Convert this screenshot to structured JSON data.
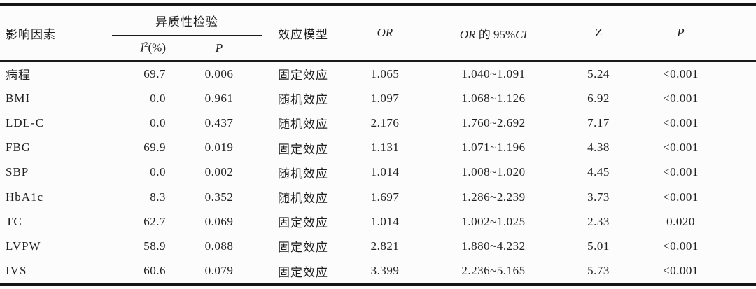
{
  "page": {
    "background": "#fcfcfc",
    "text_color": "#1f1f1f"
  },
  "table": {
    "header": {
      "factor": "影响因素",
      "heterogeneity_group": "异质性检验",
      "i2_base": "I",
      "i2_sup": "2",
      "i2_suffix": "(%)",
      "p_het": "P",
      "model": "效应模型",
      "or": "OR",
      "orci_or": "OR",
      "orci_mid": " 的 95%",
      "orci_ci": "CI",
      "z": "Z",
      "p": "P"
    },
    "rows": [
      {
        "factor": "病程",
        "i2": "69.7",
        "p_het": "0.006",
        "model": "固定效应",
        "or": "1.065",
        "ci": "1.040~1.091",
        "z": "5.24",
        "p": "<0.001"
      },
      {
        "factor": "BMI",
        "i2": "0.0",
        "p_het": "0.961",
        "model": "随机效应",
        "or": "1.097",
        "ci": "1.068~1.126",
        "z": "6.92",
        "p": "<0.001"
      },
      {
        "factor": "LDL-C",
        "i2": "0.0",
        "p_het": "0.437",
        "model": "随机效应",
        "or": "2.176",
        "ci": "1.760~2.692",
        "z": "7.17",
        "p": "<0.001"
      },
      {
        "factor": "FBG",
        "i2": "69.9",
        "p_het": "0.019",
        "model": "固定效应",
        "or": "1.131",
        "ci": "1.071~1.196",
        "z": "4.38",
        "p": "<0.001"
      },
      {
        "factor": "SBP",
        "i2": "0.0",
        "p_het": "0.002",
        "model": "随机效应",
        "or": "1.014",
        "ci": "1.008~1.020",
        "z": "4.45",
        "p": "<0.001"
      },
      {
        "factor": "HbA1c",
        "i2": "8.3",
        "p_het": "0.352",
        "model": "随机效应",
        "or": "1.697",
        "ci": "1.286~2.239",
        "z": "3.73",
        "p": "<0.001"
      },
      {
        "factor": "TC",
        "i2": "62.7",
        "p_het": "0.069",
        "model": "固定效应",
        "or": "1.014",
        "ci": "1.002~1.025",
        "z": "2.33",
        "p": "0.020"
      },
      {
        "factor": "LVPW",
        "i2": "58.9",
        "p_het": "0.088",
        "model": "固定效应",
        "or": "2.821",
        "ci": "1.880~4.232",
        "z": "5.01",
        "p": "<0.001"
      },
      {
        "factor": "IVS",
        "i2": "60.6",
        "p_het": "0.079",
        "model": "固定效应",
        "or": "3.399",
        "ci": "2.236~5.165",
        "z": "5.73",
        "p": "<0.001"
      }
    ]
  }
}
